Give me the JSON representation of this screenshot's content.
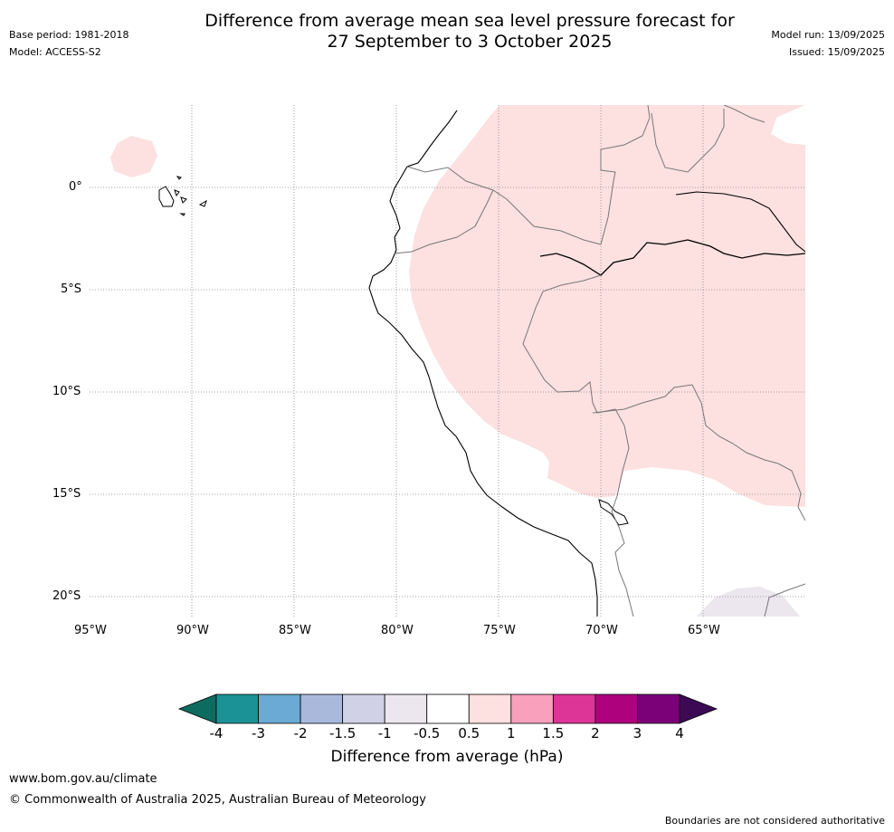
{
  "header": {
    "title_line1": "Difference from average mean sea level pressure forecast for",
    "title_line2": "27 September to 3 October 2025",
    "base_period": "Base period: 1981-2018",
    "model": "Model: ACCESS-S2",
    "model_run": "Model run: 13/09/2025",
    "issued": "Issued: 15/09/2025"
  },
  "map": {
    "lon_labels": [
      "95°W",
      "90°W",
      "85°W",
      "80°W",
      "75°W",
      "70°W",
      "65°W"
    ],
    "lat_labels": [
      "0°",
      "5°S",
      "10°S",
      "15°S",
      "20°S"
    ],
    "lon_range": [
      -95,
      -60
    ],
    "lat_range": [
      4,
      -21
    ],
    "grid": true,
    "anomaly_regions": [
      {
        "category": "0.5 to 1",
        "color": "#fde0e0"
      },
      {
        "category": "-1 to -0.5",
        "color": "#ece6ee"
      }
    ]
  },
  "colorbar": {
    "title": "Difference from average (hPa)",
    "labels": [
      "-4",
      "-3",
      "-2",
      "-1.5",
      "-1",
      "-0.5",
      "0.5",
      "1",
      "1.5",
      "2",
      "3",
      "4"
    ],
    "under_color": "#0e6b60",
    "over_color": "#3c0a55",
    "colors": [
      "#1b9296",
      "#6aaad3",
      "#a9b9dc",
      "#d0d1e6",
      "#ece6ee",
      "#ffffff",
      "#fde0e0",
      "#f9a0bd",
      "#dd3497",
      "#ae017e",
      "#7a0177"
    ]
  },
  "footer": {
    "website": "www.bom.gov.au/climate",
    "copyright": "© Commonwealth of Australia 2025, Australian Bureau of Meteorology",
    "disclaimer": "Boundaries are not considered authoritative"
  }
}
